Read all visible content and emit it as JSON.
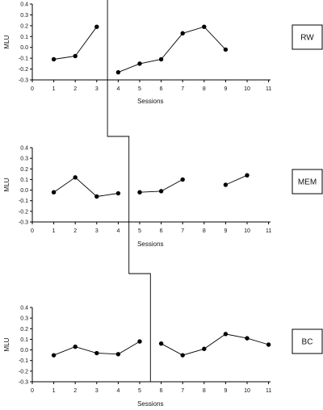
{
  "chart_data": [
    {
      "type": "line",
      "participant": "RW",
      "xlabel": "Sessions",
      "ylabel": "MLU",
      "xlim": [
        0,
        11
      ],
      "ylim": [
        -0.3,
        0.4
      ],
      "x_ticks": [
        "0",
        "1",
        "2",
        "3",
        "4",
        "5",
        "6",
        "7",
        "8",
        "9",
        "10",
        "11"
      ],
      "y_ticks": [
        "-0.3",
        "-0.2",
        "-0.1",
        "0.0",
        "0.1",
        "0.2",
        "0.3",
        "0.4"
      ],
      "phase_change": 3.5,
      "segments": [
        {
          "x": [
            1,
            2,
            3
          ],
          "y": [
            -0.11,
            -0.08,
            0.19
          ]
        },
        {
          "x": [
            4,
            5,
            6,
            7,
            8,
            9
          ],
          "y": [
            -0.23,
            -0.15,
            -0.11,
            0.13,
            0.19,
            -0.02
          ]
        }
      ]
    },
    {
      "type": "line",
      "participant": "MEM",
      "xlabel": "Sessions",
      "ylabel": "MLU",
      "xlim": [
        0,
        11
      ],
      "ylim": [
        -0.3,
        0.4
      ],
      "x_ticks": [
        "0",
        "1",
        "2",
        "3",
        "4",
        "5",
        "6",
        "7",
        "8",
        "9",
        "10",
        "11"
      ],
      "y_ticks": [
        "-0.3",
        "-0.2",
        "-0.1",
        "0.0",
        "0.1",
        "0.2",
        "0.3",
        "0.4"
      ],
      "phase_change": 4.5,
      "segments": [
        {
          "x": [
            1,
            2,
            3,
            4
          ],
          "y": [
            -0.02,
            0.12,
            -0.06,
            -0.03
          ]
        },
        {
          "x": [
            5,
            6,
            7
          ],
          "y": [
            -0.02,
            -0.01,
            0.1
          ]
        },
        {
          "x": [
            9,
            10
          ],
          "y": [
            0.05,
            0.14
          ]
        }
      ]
    },
    {
      "type": "line",
      "participant": "BC",
      "xlabel": "Sessions",
      "ylabel": "MLU",
      "xlim": [
        0,
        11
      ],
      "ylim": [
        -0.3,
        0.4
      ],
      "x_ticks": [
        "0",
        "1",
        "2",
        "3",
        "4",
        "5",
        "6",
        "7",
        "8",
        "9",
        "10",
        "11"
      ],
      "y_ticks": [
        "-0.3",
        "-0.2",
        "-0.1",
        "0.0",
        "0.1",
        "0.2",
        "0.3",
        "0.4"
      ],
      "phase_change": 5.5,
      "segments": [
        {
          "x": [
            1,
            2,
            3,
            4,
            5
          ],
          "y": [
            -0.05,
            0.03,
            -0.03,
            -0.04,
            0.08
          ]
        },
        {
          "x": [
            6,
            7,
            8,
            9,
            10,
            11
          ],
          "y": [
            0.06,
            -0.05,
            0.01,
            0.15,
            0.11,
            0.05
          ]
        }
      ]
    }
  ]
}
